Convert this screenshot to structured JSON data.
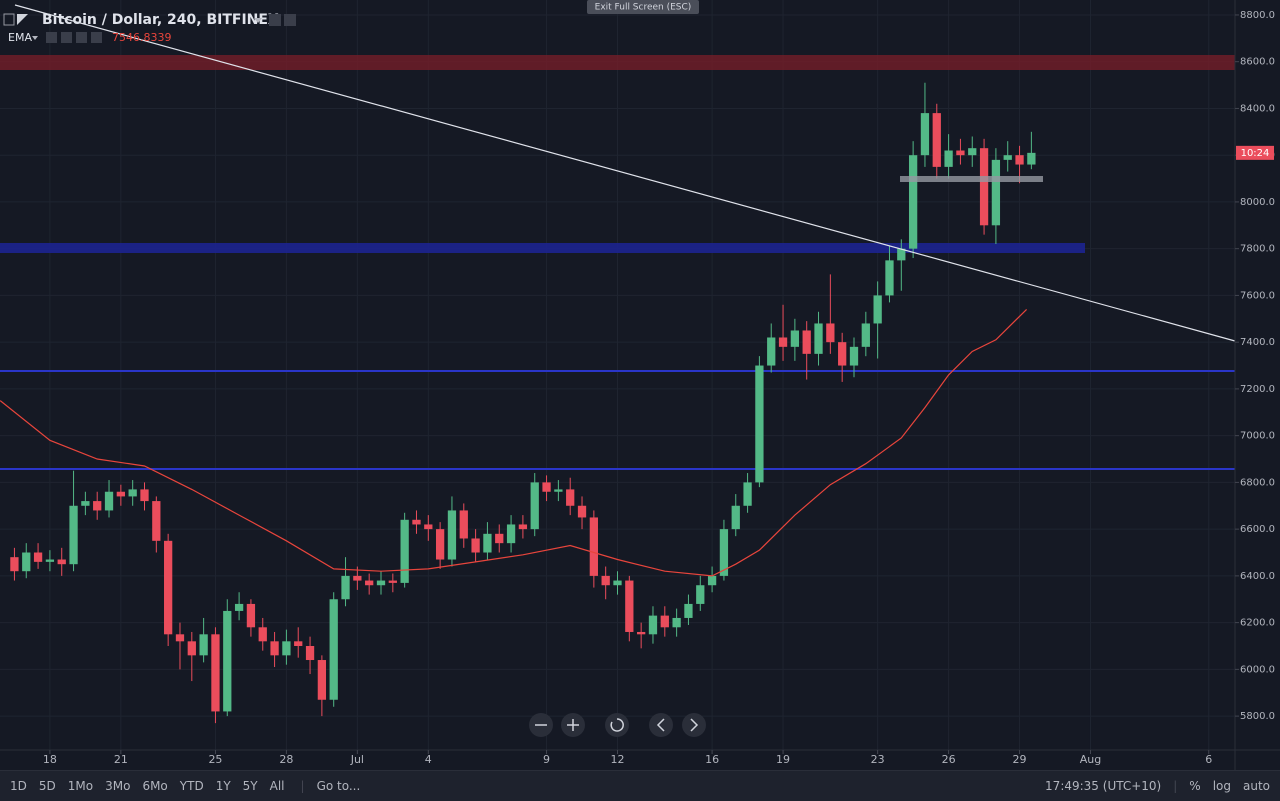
{
  "chart_data": {
    "type": "candlestick",
    "title": "Bitcoin / Dollar, 240, BITFINEX",
    "x": [
      -1.5,
      -1,
      -0.5,
      0,
      0.5,
      1,
      1.5,
      2,
      2.5,
      3,
      3.5,
      4,
      4.5,
      5,
      5.5,
      6,
      6.5,
      7,
      7.5,
      8,
      8.5,
      9,
      9.5,
      10,
      10.5,
      11,
      11.5,
      12,
      12.5,
      13,
      13.5,
      14,
      14.5,
      15,
      15.5,
      16,
      16.5,
      17,
      17.5,
      18,
      18.5,
      19,
      19.5,
      20,
      20.5,
      21,
      21.5,
      22,
      22.5,
      23,
      23.5,
      24,
      24.5,
      25,
      25.5,
      26,
      26.5,
      27,
      27.5,
      28,
      28.5,
      29,
      29.5,
      30,
      30.5,
      31,
      31.5,
      32,
      32.5,
      33,
      33.5,
      34,
      34.5,
      35,
      35.5,
      36,
      36.5,
      37,
      37.5,
      38,
      38.5,
      39,
      39.5,
      40,
      40.5,
      41,
      41.5
    ],
    "open": [
      6480,
      6420,
      6500,
      6460,
      6470,
      6450,
      6700,
      6720,
      6680,
      6760,
      6740,
      6770,
      6720,
      6550,
      6150,
      6120,
      6060,
      6150,
      5820,
      6250,
      6280,
      6180,
      6120,
      6060,
      6120,
      6100,
      6040,
      5870,
      6300,
      6400,
      6380,
      6360,
      6380,
      6370,
      6640,
      6620,
      6600,
      6470,
      6680,
      6560,
      6500,
      6580,
      6540,
      6620,
      6600,
      6800,
      6760,
      6770,
      6700,
      6650,
      6400,
      6360,
      6380,
      6160,
      6150,
      6230,
      6180,
      6220,
      6280,
      6360,
      6400,
      6600,
      6700,
      6800,
      7300,
      7420,
      7380,
      7450,
      7350,
      7480,
      7400,
      7300,
      7380,
      7480,
      7600,
      7750,
      7800,
      8200,
      8380,
      8150,
      8220,
      8200,
      8230,
      7900,
      8180,
      8200,
      8160
    ],
    "high": [
      6520,
      6540,
      6540,
      6510,
      6520,
      6850,
      6760,
      6760,
      6810,
      6790,
      6810,
      6800,
      6740,
      6580,
      6200,
      6160,
      6220,
      6180,
      6300,
      6330,
      6300,
      6220,
      6160,
      6170,
      6180,
      6140,
      6060,
      6330,
      6480,
      6440,
      6410,
      6420,
      6410,
      6670,
      6680,
      6660,
      6630,
      6740,
      6710,
      6600,
      6630,
      6620,
      6660,
      6660,
      6840,
      6830,
      6810,
      6820,
      6740,
      6680,
      6440,
      6420,
      6400,
      6200,
      6270,
      6270,
      6260,
      6320,
      6400,
      6440,
      6640,
      6750,
      6840,
      7340,
      7480,
      7560,
      7500,
      7490,
      7530,
      7690,
      7440,
      7420,
      7530,
      7660,
      7810,
      7840,
      8260,
      8510,
      8420,
      8290,
      8270,
      8280,
      8270,
      8230,
      8260,
      8240,
      8300
    ],
    "low": [
      6380,
      6390,
      6430,
      6420,
      6400,
      6420,
      6660,
      6640,
      6650,
      6700,
      6700,
      6680,
      6500,
      6100,
      6000,
      5950,
      6030,
      5770,
      5800,
      6210,
      6140,
      6080,
      6010,
      6020,
      6050,
      5980,
      5800,
      5840,
      6270,
      6340,
      6320,
      6320,
      6330,
      6350,
      6580,
      6550,
      6430,
      6440,
      6520,
      6460,
      6470,
      6500,
      6500,
      6560,
      6570,
      6720,
      6720,
      6660,
      6600,
      6350,
      6300,
      6320,
      6120,
      6090,
      6110,
      6140,
      6140,
      6190,
      6250,
      6330,
      6380,
      6570,
      6670,
      6780,
      7270,
      7320,
      7320,
      7240,
      7300,
      7350,
      7230,
      7250,
      7340,
      7330,
      7570,
      7620,
      7760,
      8150,
      8100,
      8100,
      8160,
      8150,
      7860,
      7820,
      8130,
      8080,
      8140
    ],
    "close": [
      6420,
      6500,
      6460,
      6470,
      6450,
      6700,
      6720,
      6680,
      6760,
      6740,
      6770,
      6720,
      6550,
      6150,
      6120,
      6060,
      6150,
      5820,
      6250,
      6280,
      6180,
      6120,
      6060,
      6120,
      6100,
      6040,
      5870,
      6300,
      6400,
      6380,
      6360,
      6380,
      6370,
      6640,
      6620,
      6600,
      6470,
      6680,
      6560,
      6500,
      6580,
      6540,
      6620,
      6600,
      6800,
      6760,
      6770,
      6700,
      6650,
      6400,
      6360,
      6380,
      6160,
      6150,
      6230,
      6180,
      6220,
      6280,
      6360,
      6400,
      6600,
      6700,
      6800,
      7300,
      7420,
      7380,
      7450,
      7350,
      7480,
      7400,
      7300,
      7380,
      7480,
      7600,
      7750,
      7800,
      8200,
      8380,
      8150,
      8220,
      8200,
      8230,
      7900,
      8180,
      8200,
      8160,
      8210
    ],
    "up_color": "#53b987",
    "down_color": "#eb4d5c",
    "series": [
      {
        "name": "EMA",
        "color": "#e8453c",
        "last_value": 7546.8339,
        "x": [
          -2.1,
          0,
          2,
          4,
          6,
          8,
          10,
          12,
          14,
          16,
          18,
          20,
          22,
          24,
          26,
          28,
          29,
          30,
          31.5,
          33,
          34.5,
          36,
          37,
          38,
          39,
          40,
          41.3
        ],
        "values": [
          7150,
          6980,
          6900,
          6870,
          6770,
          6660,
          6550,
          6430,
          6420,
          6430,
          6460,
          6490,
          6530,
          6470,
          6420,
          6400,
          6450,
          6510,
          6660,
          6790,
          6880,
          6990,
          7120,
          7260,
          7360,
          7410,
          7540
        ]
      }
    ],
    "price_tag": "10:24",
    "xlim": [
      -2.11,
      50.11
    ],
    "ylim": [
      5655,
      8864
    ],
    "xticks": [
      {
        "value": 0,
        "label": "18"
      },
      {
        "value": 3,
        "label": "21"
      },
      {
        "value": 7,
        "label": "25"
      },
      {
        "value": 10,
        "label": "28"
      },
      {
        "value": 13,
        "label": "Jul"
      },
      {
        "value": 16,
        "label": "4"
      },
      {
        "value": 21,
        "label": "9"
      },
      {
        "value": 24,
        "label": "12"
      },
      {
        "value": 28,
        "label": "16"
      },
      {
        "value": 31,
        "label": "19"
      },
      {
        "value": 35,
        "label": "23"
      },
      {
        "value": 38,
        "label": "26"
      },
      {
        "value": 41,
        "label": "29"
      },
      {
        "value": 44,
        "label": "Aug"
      },
      {
        "value": 49,
        "label": "6"
      }
    ],
    "yticks": [
      {
        "value": 5800,
        "label": "5800.0"
      },
      {
        "value": 6000,
        "label": "6000.0"
      },
      {
        "value": 6200,
        "label": "6200.0"
      },
      {
        "value": 6400,
        "label": "6400.0"
      },
      {
        "value": 6600,
        "label": "6600.0"
      },
      {
        "value": 6800,
        "label": "6800.0"
      },
      {
        "value": 7000,
        "label": "7000.0"
      },
      {
        "value": 7200,
        "label": "7200.0"
      },
      {
        "value": 7400,
        "label": "7400.0"
      },
      {
        "value": 7600,
        "label": "7600.0"
      },
      {
        "value": 7800,
        "label": "7800.0"
      },
      {
        "value": 8000,
        "label": "8000.0"
      },
      {
        "value": 8200,
        "label": "8200.0"
      },
      {
        "value": 8400,
        "label": "8400.0"
      },
      {
        "value": 8600,
        "label": "8600.0"
      },
      {
        "value": 8800,
        "label": "8800.0"
      }
    ],
    "grid": true
  },
  "ui": {
    "exit_fullscreen": "Exit Full Screen (ESC)",
    "ranges": [
      "1D",
      "5D",
      "1Mo",
      "3Mo",
      "6Mo",
      "YTD",
      "1Y",
      "5Y",
      "All"
    ],
    "goto": "Go to...",
    "clock": "17:49:35 (UTC+10)",
    "percent": "%",
    "log": "log",
    "auto": "auto"
  }
}
